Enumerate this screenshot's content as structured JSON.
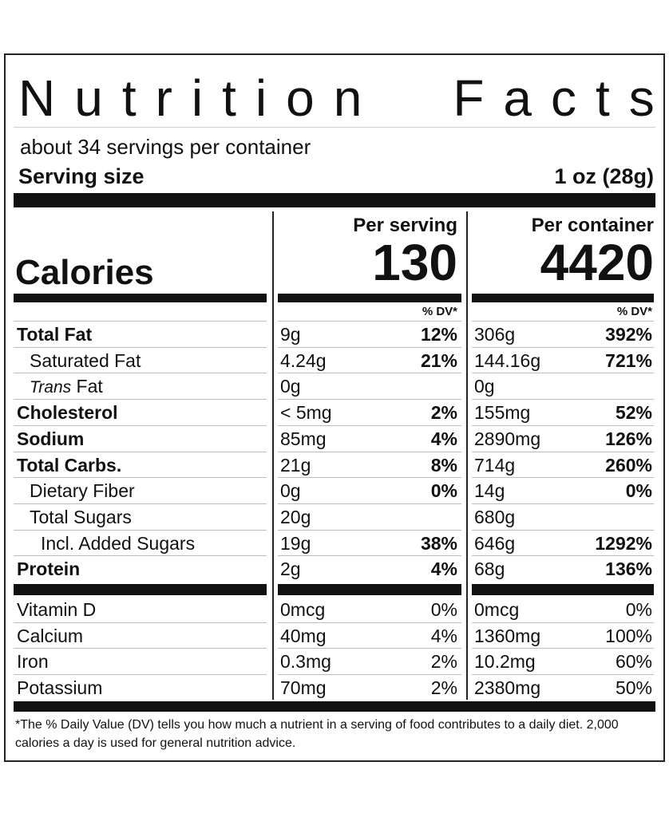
{
  "title": {
    "word1": "Nutrition",
    "word2": "Facts"
  },
  "servings_per_container": "about 34 servings per container",
  "serving_size": {
    "label": "Serving size",
    "value": "1 oz (28g)"
  },
  "columns": {
    "per_serving": "Per serving",
    "per_container": "Per container"
  },
  "calories": {
    "label": "Calories",
    "per_serving": "130",
    "per_container": "4420"
  },
  "dv_header": "% DV*",
  "nutrients": [
    {
      "name": "Total Fat",
      "bold": true,
      "indent": 0,
      "s_amt": "9g",
      "s_dv": "12%",
      "c_amt": "306g",
      "c_dv": "392%"
    },
    {
      "name": "Saturated Fat",
      "bold": false,
      "indent": 1,
      "s_amt": "4.24g",
      "s_dv": "21%",
      "c_amt": "144.16g",
      "c_dv": "721%"
    },
    {
      "name_italic": "Trans",
      "name": " Fat",
      "bold": false,
      "indent": 1,
      "s_amt": "0g",
      "s_dv": "",
      "c_amt": "0g",
      "c_dv": ""
    },
    {
      "name": "Cholesterol",
      "bold": true,
      "indent": 0,
      "s_amt": "< 5mg",
      "s_dv": "2%",
      "c_amt": "155mg",
      "c_dv": "52%"
    },
    {
      "name": "Sodium",
      "bold": true,
      "indent": 0,
      "s_amt": "85mg",
      "s_dv": "4%",
      "c_amt": "2890mg",
      "c_dv": "126%"
    },
    {
      "name": "Total Carbs.",
      "bold": true,
      "indent": 0,
      "s_amt": "21g",
      "s_dv": "8%",
      "c_amt": "714g",
      "c_dv": "260%"
    },
    {
      "name": "Dietary Fiber",
      "bold": false,
      "indent": 1,
      "s_amt": "0g",
      "s_dv": "0%",
      "c_amt": "14g",
      "c_dv": "0%"
    },
    {
      "name": "Total Sugars",
      "bold": false,
      "indent": 1,
      "s_amt": "20g",
      "s_dv": "",
      "c_amt": "680g",
      "c_dv": ""
    },
    {
      "name": "Incl. Added Sugars",
      "bold": false,
      "indent": 2,
      "s_amt": "19g",
      "s_dv": "38%",
      "c_amt": "646g",
      "c_dv": "1292%"
    },
    {
      "name": "Protein",
      "bold": true,
      "indent": 0,
      "s_amt": "2g",
      "s_dv": "4%",
      "c_amt": "68g",
      "c_dv": "136%"
    }
  ],
  "vitamins": [
    {
      "name": "Vitamin D",
      "s_amt": "0mcg",
      "s_dv": "0%",
      "c_amt": "0mcg",
      "c_dv": "0%"
    },
    {
      "name": "Calcium",
      "s_amt": "40mg",
      "s_dv": "4%",
      "c_amt": "1360mg",
      "c_dv": "100%"
    },
    {
      "name": "Iron",
      "s_amt": "0.3mg",
      "s_dv": "2%",
      "c_amt": "10.2mg",
      "c_dv": "60%"
    },
    {
      "name": "Potassium",
      "s_amt": "70mg",
      "s_dv": "2%",
      "c_amt": "2380mg",
      "c_dv": "50%"
    }
  ],
  "footnote": "*The % Daily Value (DV) tells you how much a nutrient in a serving of food contributes to a daily diet. 2,000 calories a day is used for general nutrition advice."
}
